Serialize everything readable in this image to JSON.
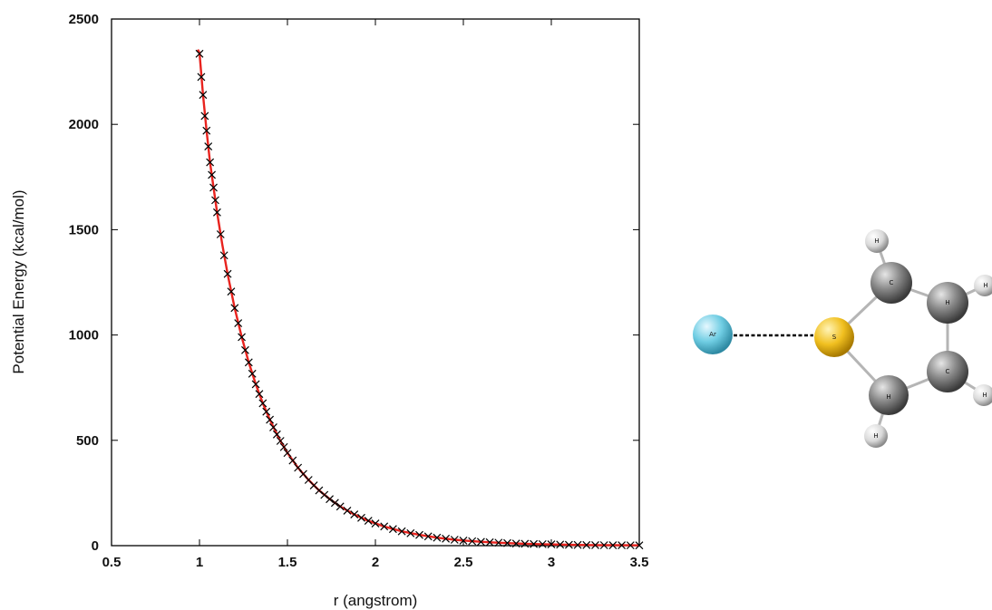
{
  "chart_data": {
    "type": "scatter",
    "title": "",
    "xlabel": "r (angstrom)",
    "ylabel": "Potential Energy (kcal/mol)",
    "xlim": [
      0.5,
      3.5
    ],
    "ylim": [
      0,
      2500
    ],
    "x_ticks": [
      "0.5",
      "1",
      "1.5",
      "2",
      "2.5",
      "3",
      "3.5"
    ],
    "y_ticks": [
      "0",
      "500",
      "1000",
      "1500",
      "2000",
      "2500"
    ],
    "grid": false,
    "legend": "none",
    "series": [
      {
        "kind": "markers",
        "marker": "x",
        "color": "#000000",
        "x": [
          1.0,
          1.01,
          1.02,
          1.03,
          1.04,
          1.05,
          1.06,
          1.07,
          1.08,
          1.09,
          1.1,
          1.12,
          1.14,
          1.16,
          1.18,
          1.2,
          1.22,
          1.24,
          1.26,
          1.28,
          1.3,
          1.32,
          1.34,
          1.36,
          1.38,
          1.4,
          1.42,
          1.44,
          1.46,
          1.48,
          1.5,
          1.53,
          1.56,
          1.59,
          1.62,
          1.65,
          1.68,
          1.71,
          1.74,
          1.77,
          1.8,
          1.84,
          1.88,
          1.92,
          1.96,
          2.0,
          2.05,
          2.1,
          2.15,
          2.2,
          2.25,
          2.3,
          2.35,
          2.4,
          2.45,
          2.5,
          2.55,
          2.6,
          2.65,
          2.7,
          2.75,
          2.8,
          2.85,
          2.9,
          2.95,
          3.0,
          3.05,
          3.1,
          3.15,
          3.2,
          3.25,
          3.3,
          3.35,
          3.4,
          3.45,
          3.5
        ],
        "y": [
          2335,
          2225,
          2140,
          2040,
          1970,
          1895,
          1820,
          1760,
          1700,
          1640,
          1582,
          1478,
          1378,
          1290,
          1206,
          1128,
          1056,
          990,
          928,
          870,
          816,
          766,
          720,
          676,
          636,
          598,
          562,
          528,
          497,
          468,
          440,
          404,
          370,
          340,
          312,
          286,
          262,
          241,
          221,
          203,
          186,
          166,
          148,
          132,
          118,
          105,
          91,
          79,
          68,
          59,
          51,
          44,
          38,
          33,
          28,
          24,
          21,
          18,
          16,
          14,
          12,
          10,
          9,
          8,
          7,
          6,
          5,
          4,
          3.5,
          3,
          2.6,
          2.2,
          2,
          1.8,
          1.6,
          1.5
        ]
      },
      {
        "kind": "fit-line",
        "color": "#e8231e",
        "x": [
          0.99,
          1.0,
          1.02,
          1.04,
          1.06,
          1.08,
          1.1,
          1.13,
          1.16,
          1.2,
          1.24,
          1.28,
          1.32,
          1.36,
          1.4,
          1.45,
          1.5,
          1.56,
          1.62,
          1.68,
          1.74,
          1.8,
          1.88,
          1.96,
          2.05,
          2.15,
          2.25,
          2.35,
          2.45,
          2.55,
          2.65,
          2.75,
          2.85,
          2.95,
          3.05,
          3.15,
          3.25,
          3.35,
          3.45,
          3.5
        ],
        "y": [
          2355,
          2340,
          2140,
          1970,
          1820,
          1700,
          1582,
          1428,
          1290,
          1128,
          990,
          870,
          766,
          676,
          598,
          512,
          440,
          370,
          312,
          262,
          221,
          186,
          148,
          118,
          91,
          68,
          51,
          38,
          28,
          21,
          16,
          12,
          9,
          7,
          5,
          3.5,
          2.6,
          2,
          1.6,
          1.5
        ]
      }
    ]
  },
  "molecule": {
    "atoms": [
      {
        "id": "ar",
        "label": "Ar",
        "color": "#6fcde3"
      },
      {
        "id": "s",
        "label": "S",
        "color": "#f1c020"
      },
      {
        "id": "c1",
        "label": "C",
        "color": "#8c8c8c"
      },
      {
        "id": "c2",
        "label": "H",
        "color": "#7a7a7a"
      },
      {
        "id": "c3",
        "label": "C",
        "color": "#858585"
      },
      {
        "id": "c4",
        "label": "H",
        "color": "#868686"
      },
      {
        "id": "h1",
        "label": "H",
        "color": "#ffffff"
      },
      {
        "id": "h2",
        "label": "H",
        "color": "#ffffff"
      },
      {
        "id": "h3",
        "label": "H",
        "color": "#ffffff"
      },
      {
        "id": "h4",
        "label": "H",
        "color": "#ffffff"
      }
    ]
  }
}
